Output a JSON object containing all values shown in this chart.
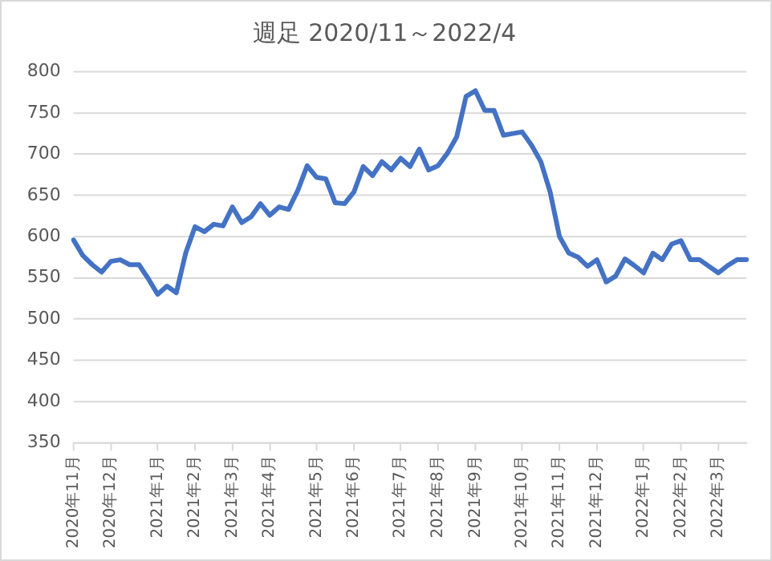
{
  "chart_data": {
    "type": "line",
    "title": "週足 2020/11～2022/4",
    "categories": [
      "2020年11月",
      null,
      null,
      null,
      "2020年12月",
      null,
      null,
      null,
      null,
      "2021年1月",
      null,
      null,
      null,
      "2021年2月",
      null,
      null,
      null,
      "2021年3月",
      null,
      null,
      null,
      "2021年4月",
      null,
      null,
      null,
      null,
      "2021年5月",
      null,
      null,
      null,
      "2021年6月",
      null,
      null,
      null,
      null,
      "2021年7月",
      null,
      null,
      null,
      "2021年8月",
      null,
      null,
      null,
      "2021年9月",
      null,
      null,
      null,
      null,
      "2021年10月",
      null,
      null,
      null,
      "2021年11月",
      null,
      null,
      null,
      "2021年12月",
      null,
      null,
      null,
      null,
      "2022年1月",
      null,
      null,
      null,
      "2022年2月",
      null,
      null,
      null,
      "2022年3月",
      null,
      null,
      null
    ],
    "series": [
      {
        "color": "#4472c4",
        "values": [
          596,
          577,
          566,
          557,
          570,
          572,
          566,
          566,
          549,
          530,
          540,
          532,
          580,
          612,
          606,
          615,
          613,
          636,
          617,
          624,
          640,
          626,
          636,
          633,
          656,
          686,
          672,
          670,
          641,
          640,
          654,
          685,
          674,
          691,
          681,
          695,
          685,
          706,
          681,
          686,
          701,
          721,
          770,
          777,
          753,
          753,
          723,
          725,
          727,
          711,
          691,
          654,
          600,
          580,
          575,
          564,
          572,
          545,
          552,
          573,
          565,
          556,
          580,
          572,
          591,
          595,
          572,
          572,
          564,
          556,
          565,
          572,
          572
        ]
      }
    ],
    "ylim": [
      350,
      800
    ],
    "yticks": [
      350,
      400,
      450,
      500,
      550,
      600,
      650,
      700,
      750,
      800
    ],
    "grid": "y",
    "legend": false,
    "marker": "none",
    "line_style": "solid"
  }
}
